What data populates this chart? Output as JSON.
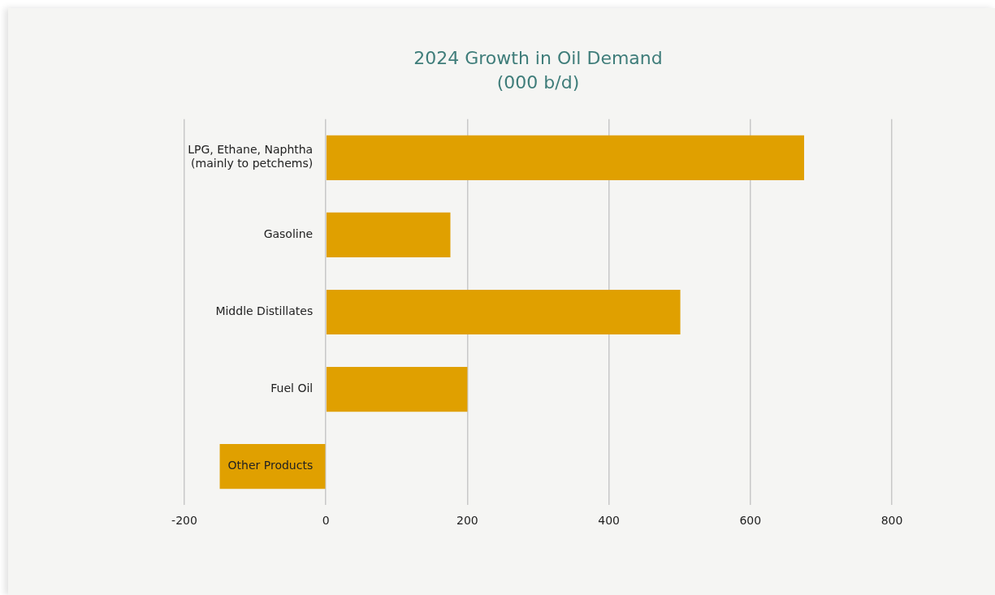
{
  "chart_data": {
    "type": "bar",
    "orientation": "horizontal",
    "title": "2024 Growth in Oil Demand",
    "subtitle": "(000 b/d)",
    "categories": [
      "LPG, Ethane, Naphtha\n(mainly to petchems)",
      "Gasoline",
      "Middle Distillates",
      "Fuel Oil",
      "Other Products"
    ],
    "values": [
      676,
      176,
      501,
      200,
      -150
    ],
    "color": "#e0a000",
    "xlim": [
      -200,
      800
    ],
    "xticks": [
      -200,
      0,
      200,
      400,
      600,
      800
    ],
    "grid": "x",
    "legend": false
  }
}
